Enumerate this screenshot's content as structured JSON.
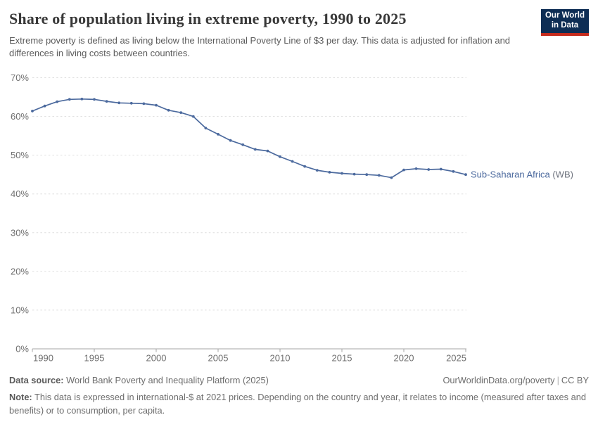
{
  "header": {
    "title": "Share of population living in extreme poverty, 1990 to 2025",
    "subtitle": "Extreme poverty is defined as living below the International Poverty Line of $3 per day. This data is adjusted for inflation and differences in living costs between countries.",
    "logo": {
      "line1": "Our World",
      "line2": "in Data",
      "bg_color": "#0d2d54",
      "stripe_color": "#c52b1d"
    }
  },
  "chart_data": {
    "type": "line",
    "title": "Share of population living in extreme poverty, 1990 to 2025",
    "xlabel": "",
    "ylabel": "",
    "x": [
      1990,
      1991,
      1992,
      1993,
      1994,
      1995,
      1996,
      1997,
      1998,
      1999,
      2000,
      2001,
      2002,
      2003,
      2004,
      2005,
      2006,
      2007,
      2008,
      2009,
      2010,
      2011,
      2012,
      2013,
      2014,
      2015,
      2016,
      2017,
      2018,
      2019,
      2020,
      2021,
      2022,
      2023,
      2024,
      2025
    ],
    "series": [
      {
        "name": "Sub-Saharan Africa",
        "suffix": " (WB)",
        "color": "#4c6a9e",
        "values": [
          61.4,
          62.7,
          63.8,
          64.4,
          64.5,
          64.4,
          63.9,
          63.5,
          63.4,
          63.3,
          62.9,
          61.6,
          61.0,
          60.0,
          57.0,
          55.4,
          53.8,
          52.7,
          51.5,
          51.1,
          49.6,
          48.4,
          47.1,
          46.1,
          45.6,
          45.3,
          45.1,
          45.0,
          44.8,
          44.2,
          46.2,
          46.5,
          46.3,
          46.4,
          45.8,
          45.0
        ]
      }
    ],
    "xlim": [
      1990,
      2025
    ],
    "ylim": [
      0,
      70
    ],
    "xticks": [
      1990,
      1995,
      2000,
      2005,
      2010,
      2015,
      2020,
      2025
    ],
    "yticks": [
      0,
      10,
      20,
      30,
      40,
      50,
      60,
      70
    ],
    "ytick_suffix": "%",
    "grid": "horizontal dashed gridlines, solid baseline at 0%",
    "legend_position": "label at end of line",
    "marker": "circle",
    "colors": {
      "line": "#4c6a9e",
      "label_suffix": "#6e737e",
      "axis_text": "#6f6f6f",
      "gridline": "#dedede",
      "axis_line": "#a6a6a6"
    }
  },
  "footer": {
    "source_label": "Data source:",
    "source_text": "World Bank Poverty and Inequality Platform (2025)",
    "link_text": "OurWorldinData.org/poverty",
    "separator": "|",
    "license_text": "CC BY",
    "note_label": "Note:",
    "note_text": "This data is expressed in international-$ at 2021 prices. Depending on the country and year, it relates to income (measured after taxes and benefits) or to consumption, per capita."
  }
}
